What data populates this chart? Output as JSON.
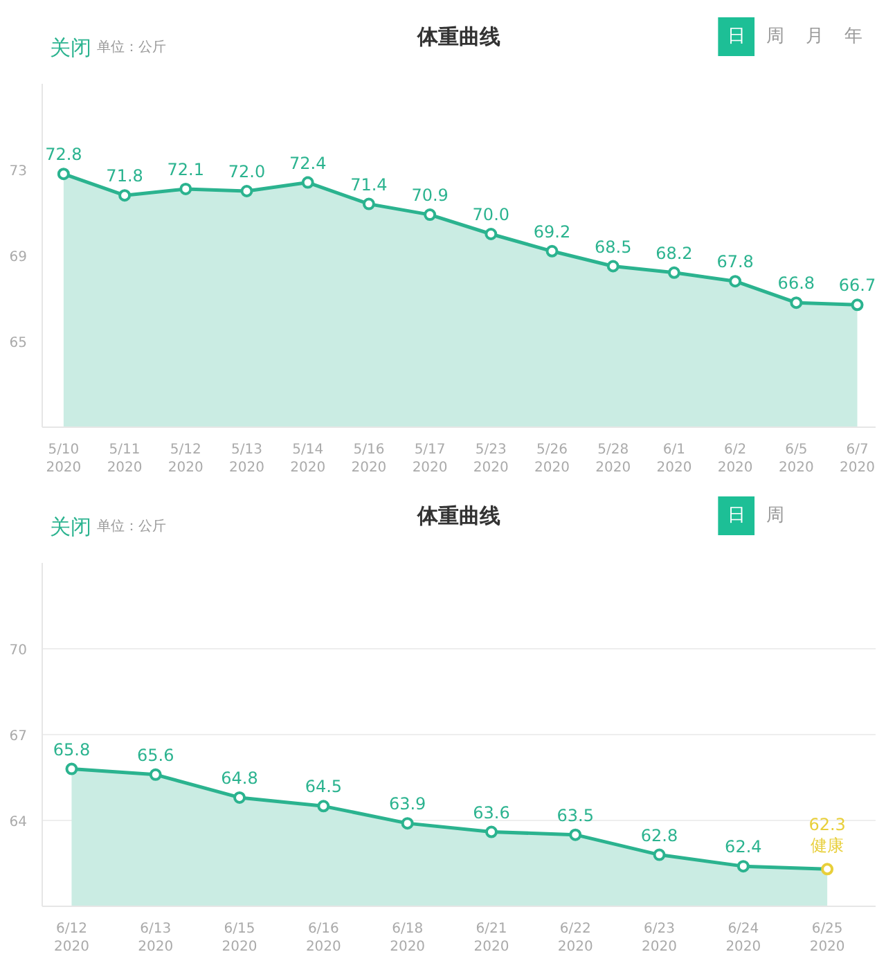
{
  "chart_data": [
    {
      "type": "area",
      "title": "体重曲线",
      "subtitle": "单位：公斤",
      "annotations": [
        "关闭",
        "日",
        "周",
        "月",
        "年"
      ],
      "categories": [
        "5/10\n2020",
        "5/11\n2020",
        "5/12\n2020",
        "5/13\n2020",
        "5/14\n2020",
        "5/16\n2020",
        "5/17\n2020",
        "5/23\n2020",
        "5/26\n2020",
        "5/28\n2020",
        "6/1\n2020",
        "6/2\n2020",
        "6/5\n2020",
        "6/7\n2020"
      ],
      "series": [
        {
          "color": "#2bb38f",
          "values": [
            72.8,
            71.8,
            72.1,
            72.0,
            72.4,
            71.4,
            70.9,
            70.0,
            69.2,
            68.5,
            68.2,
            67.8,
            66.8,
            66.7
          ],
          "value_labels": [
            "72.8",
            "71.8",
            "72.1",
            "72.0",
            "72.4",
            "71.4",
            "70.9",
            "70.0",
            "69.2",
            "68.5",
            "68.2",
            "67.8",
            "66.8",
            "66.7"
          ]
        }
      ],
      "ylim": [
        61,
        77
      ],
      "yticks": [
        65,
        69,
        73
      ],
      "marker": "circle",
      "line_style": "solid",
      "grid": false
    },
    {
      "type": "area",
      "title": "体重曲线",
      "subtitle": "单位：公斤",
      "annotations": [
        "关闭",
        "日",
        "周",
        {
          "text": "健康",
          "x": "6/25\n2020",
          "y": 62.3
        }
      ],
      "categories": [
        "6/12\n2020",
        "6/13\n2020",
        "6/15\n2020",
        "6/16\n2020",
        "6/18\n2020",
        "6/21\n2020",
        "6/22\n2020",
        "6/23\n2020",
        "6/24\n2020",
        "6/25\n2020"
      ],
      "series": [
        {
          "color": "#2bb38f",
          "values": [
            65.8,
            65.6,
            64.8,
            64.5,
            63.9,
            63.6,
            63.5,
            62.8,
            62.4,
            62.3
          ],
          "value_labels": [
            "65.8",
            "65.6",
            "64.8",
            "64.5",
            "63.9",
            "63.6",
            "63.5",
            "62.8",
            "62.4",
            "62.3"
          ],
          "colors": [
            "#2bb38f",
            "#2bb38f",
            "#2bb38f",
            "#2bb38f",
            "#2bb38f",
            "#2bb38f",
            "#2bb38f",
            "#2bb38f",
            "#2bb38f",
            "#e8cf3a"
          ]
        }
      ],
      "ylim": [
        61,
        73
      ],
      "yticks": [
        64,
        67,
        70
      ],
      "marker": "circle",
      "line_style": "solid",
      "grid": "y"
    }
  ]
}
